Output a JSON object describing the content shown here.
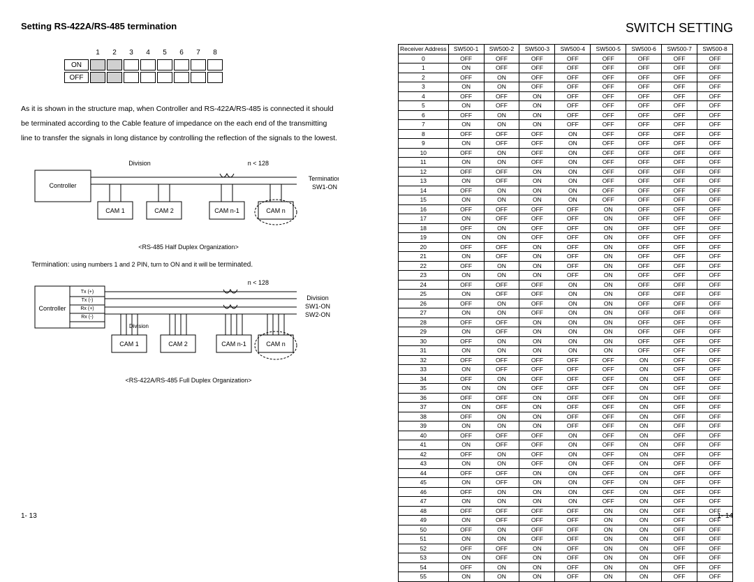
{
  "left": {
    "title": "Setting RS-422A/RS-485 termination",
    "dip": {
      "cols": [
        "1",
        "2",
        "3",
        "4",
        "5",
        "6",
        "7",
        "8"
      ],
      "rows": [
        "ON",
        "OFF"
      ]
    },
    "paragraph": "As it is shown in the structure map, when Controller and RS-422A/RS-485 is connected it should be terminated according to the Cable feature of impedance on the each end of the transmitting line to transfer the signals in long distance by controlling the reflection of the signals to the lowest.",
    "diag1": {
      "controller": "Controller",
      "division": "Division",
      "nlt": "n < 128",
      "termination": "Termination",
      "sw1": "SW1-ON",
      "cams": [
        "CAM 1",
        "CAM 2",
        "CAM n-1",
        "CAM n"
      ],
      "caption": "<RS-485 Half Duplex Organization>"
    },
    "term_note_pre": "Termination:",
    "term_note_body": " using numbers 1 and 2 PIN, turn to ON and it will be ",
    "term_note_post": "terminated.",
    "diag2": {
      "controller": "Controller",
      "nlt": "n < 128",
      "tx_p": "Tx (+)",
      "tx_n": "Tx (-)",
      "rx_p": "Rx (+)",
      "rx_n": "Rx (-)",
      "division": "Division",
      "division2": "Division",
      "sw1": "SW1-ON",
      "sw2": "SW2-ON",
      "cams": [
        "CAM 1",
        "CAM 2",
        "CAM n-1",
        "CAM n"
      ],
      "caption": "<RS-422A/RS-485 Full Duplex Organization>"
    },
    "pgnum": "1- 13"
  },
  "right": {
    "title": "SWITCH SETTING",
    "headers": [
      "Receiver Address",
      "SW500-1",
      "SW500-2",
      "SW500-3",
      "SW500-4",
      "SW500-5",
      "SW500-6",
      "SW500-7",
      "SW500-8"
    ],
    "rows": [
      [
        "0",
        "OFF",
        "OFF",
        "OFF",
        "OFF",
        "OFF",
        "OFF",
        "OFF",
        "OFF"
      ],
      [
        "1",
        "ON",
        "OFF",
        "OFF",
        "OFF",
        "OFF",
        "OFF",
        "OFF",
        "OFF"
      ],
      [
        "2",
        "OFF",
        "ON",
        "OFF",
        "OFF",
        "OFF",
        "OFF",
        "OFF",
        "OFF"
      ],
      [
        "3",
        "ON",
        "ON",
        "OFF",
        "OFF",
        "OFF",
        "OFF",
        "OFF",
        "OFF"
      ],
      [
        "4",
        "OFF",
        "OFF",
        "ON",
        "OFF",
        "OFF",
        "OFF",
        "OFF",
        "OFF"
      ],
      [
        "5",
        "ON",
        "OFF",
        "ON",
        "OFF",
        "OFF",
        "OFF",
        "OFF",
        "OFF"
      ],
      [
        "6",
        "OFF",
        "ON",
        "ON",
        "OFF",
        "OFF",
        "OFF",
        "OFF",
        "OFF"
      ],
      [
        "7",
        "ON",
        "ON",
        "ON",
        "OFF",
        "OFF",
        "OFF",
        "OFF",
        "OFF"
      ],
      [
        "8",
        "OFF",
        "OFF",
        "OFF",
        "ON",
        "OFF",
        "OFF",
        "OFF",
        "OFF"
      ],
      [
        "9",
        "ON",
        "OFF",
        "OFF",
        "ON",
        "OFF",
        "OFF",
        "OFF",
        "OFF"
      ],
      [
        "10",
        "OFF",
        "ON",
        "OFF",
        "ON",
        "OFF",
        "OFF",
        "OFF",
        "OFF"
      ],
      [
        "11",
        "ON",
        "ON",
        "OFF",
        "ON",
        "OFF",
        "OFF",
        "OFF",
        "OFF"
      ],
      [
        "12",
        "OFF",
        "OFF",
        "ON",
        "ON",
        "OFF",
        "OFF",
        "OFF",
        "OFF"
      ],
      [
        "13",
        "ON",
        "OFF",
        "ON",
        "ON",
        "OFF",
        "OFF",
        "OFF",
        "OFF"
      ],
      [
        "14",
        "OFF",
        "ON",
        "ON",
        "ON",
        "OFF",
        "OFF",
        "OFF",
        "OFF"
      ],
      [
        "15",
        "ON",
        "ON",
        "ON",
        "ON",
        "OFF",
        "OFF",
        "OFF",
        "OFF"
      ],
      [
        "16",
        "OFF",
        "OFF",
        "OFF",
        "OFF",
        "ON",
        "OFF",
        "OFF",
        "OFF"
      ],
      [
        "17",
        "ON",
        "OFF",
        "OFF",
        "OFF",
        "ON",
        "OFF",
        "OFF",
        "OFF"
      ],
      [
        "18",
        "OFF",
        "ON",
        "OFF",
        "OFF",
        "ON",
        "OFF",
        "OFF",
        "OFF"
      ],
      [
        "19",
        "ON",
        "ON",
        "OFF",
        "OFF",
        "ON",
        "OFF",
        "OFF",
        "OFF"
      ],
      [
        "20",
        "OFF",
        "OFF",
        "ON",
        "OFF",
        "ON",
        "OFF",
        "OFF",
        "OFF"
      ],
      [
        "21",
        "ON",
        "OFF",
        "ON",
        "OFF",
        "ON",
        "OFF",
        "OFF",
        "OFF"
      ],
      [
        "22",
        "OFF",
        "ON",
        "ON",
        "OFF",
        "ON",
        "OFF",
        "OFF",
        "OFF"
      ],
      [
        "23",
        "ON",
        "ON",
        "ON",
        "OFF",
        "ON",
        "OFF",
        "OFF",
        "OFF"
      ],
      [
        "24",
        "OFF",
        "OFF",
        "OFF",
        "ON",
        "ON",
        "OFF",
        "OFF",
        "OFF"
      ],
      [
        "25",
        "ON",
        "OFF",
        "OFF",
        "ON",
        "ON",
        "OFF",
        "OFF",
        "OFF"
      ],
      [
        "26",
        "OFF",
        "ON",
        "OFF",
        "ON",
        "ON",
        "OFF",
        "OFF",
        "OFF"
      ],
      [
        "27",
        "ON",
        "ON",
        "OFF",
        "ON",
        "ON",
        "OFF",
        "OFF",
        "OFF"
      ],
      [
        "28",
        "OFF",
        "OFF",
        "ON",
        "ON",
        "ON",
        "OFF",
        "OFF",
        "OFF"
      ],
      [
        "29",
        "ON",
        "OFF",
        "ON",
        "ON",
        "ON",
        "OFF",
        "OFF",
        "OFF"
      ],
      [
        "30",
        "OFF",
        "ON",
        "ON",
        "ON",
        "ON",
        "OFF",
        "OFF",
        "OFF"
      ],
      [
        "31",
        "ON",
        "ON",
        "ON",
        "ON",
        "ON",
        "OFF",
        "OFF",
        "OFF"
      ],
      [
        "32",
        "OFF",
        "OFF",
        "OFF",
        "OFF",
        "OFF",
        "ON",
        "OFF",
        "OFF"
      ],
      [
        "33",
        "ON",
        "OFF",
        "OFF",
        "OFF",
        "OFF",
        "ON",
        "OFF",
        "OFF"
      ],
      [
        "34",
        "OFF",
        "ON",
        "OFF",
        "OFF",
        "OFF",
        "ON",
        "OFF",
        "OFF"
      ],
      [
        "35",
        "ON",
        "ON",
        "OFF",
        "OFF",
        "OFF",
        "ON",
        "OFF",
        "OFF"
      ],
      [
        "36",
        "OFF",
        "OFF",
        "ON",
        "OFF",
        "OFF",
        "ON",
        "OFF",
        "OFF"
      ],
      [
        "37",
        "ON",
        "OFF",
        "ON",
        "OFF",
        "OFF",
        "ON",
        "OFF",
        "OFF"
      ],
      [
        "38",
        "OFF",
        "ON",
        "ON",
        "OFF",
        "OFF",
        "ON",
        "OFF",
        "OFF"
      ],
      [
        "39",
        "ON",
        "ON",
        "ON",
        "OFF",
        "OFF",
        "ON",
        "OFF",
        "OFF"
      ],
      [
        "40",
        "OFF",
        "OFF",
        "OFF",
        "ON",
        "OFF",
        "ON",
        "OFF",
        "OFF"
      ],
      [
        "41",
        "ON",
        "OFF",
        "OFF",
        "ON",
        "OFF",
        "ON",
        "OFF",
        "OFF"
      ],
      [
        "42",
        "OFF",
        "ON",
        "OFF",
        "ON",
        "OFF",
        "ON",
        "OFF",
        "OFF"
      ],
      [
        "43",
        "ON",
        "ON",
        "OFF",
        "ON",
        "OFF",
        "ON",
        "OFF",
        "OFF"
      ],
      [
        "44",
        "OFF",
        "OFF",
        "ON",
        "ON",
        "OFF",
        "ON",
        "OFF",
        "OFF"
      ],
      [
        "45",
        "ON",
        "OFF",
        "ON",
        "ON",
        "OFF",
        "ON",
        "OFF",
        "OFF"
      ],
      [
        "46",
        "OFF",
        "ON",
        "ON",
        "ON",
        "OFF",
        "ON",
        "OFF",
        "OFF"
      ],
      [
        "47",
        "ON",
        "ON",
        "ON",
        "ON",
        "OFF",
        "ON",
        "OFF",
        "OFF"
      ],
      [
        "48",
        "OFF",
        "OFF",
        "OFF",
        "OFF",
        "ON",
        "ON",
        "OFF",
        "OFF"
      ],
      [
        "49",
        "ON",
        "OFF",
        "OFF",
        "OFF",
        "ON",
        "ON",
        "OFF",
        "OFF"
      ],
      [
        "50",
        "OFF",
        "ON",
        "OFF",
        "OFF",
        "ON",
        "ON",
        "OFF",
        "OFF"
      ],
      [
        "51",
        "ON",
        "ON",
        "OFF",
        "OFF",
        "ON",
        "ON",
        "OFF",
        "OFF"
      ],
      [
        "52",
        "OFF",
        "OFF",
        "ON",
        "OFF",
        "ON",
        "ON",
        "OFF",
        "OFF"
      ],
      [
        "53",
        "ON",
        "OFF",
        "ON",
        "OFF",
        "ON",
        "ON",
        "OFF",
        "OFF"
      ],
      [
        "54",
        "OFF",
        "ON",
        "ON",
        "OFF",
        "ON",
        "ON",
        "OFF",
        "OFF"
      ],
      [
        "55",
        "ON",
        "ON",
        "ON",
        "OFF",
        "ON",
        "ON",
        "OFF",
        "OFF"
      ]
    ],
    "pgnum": "1- 14"
  }
}
